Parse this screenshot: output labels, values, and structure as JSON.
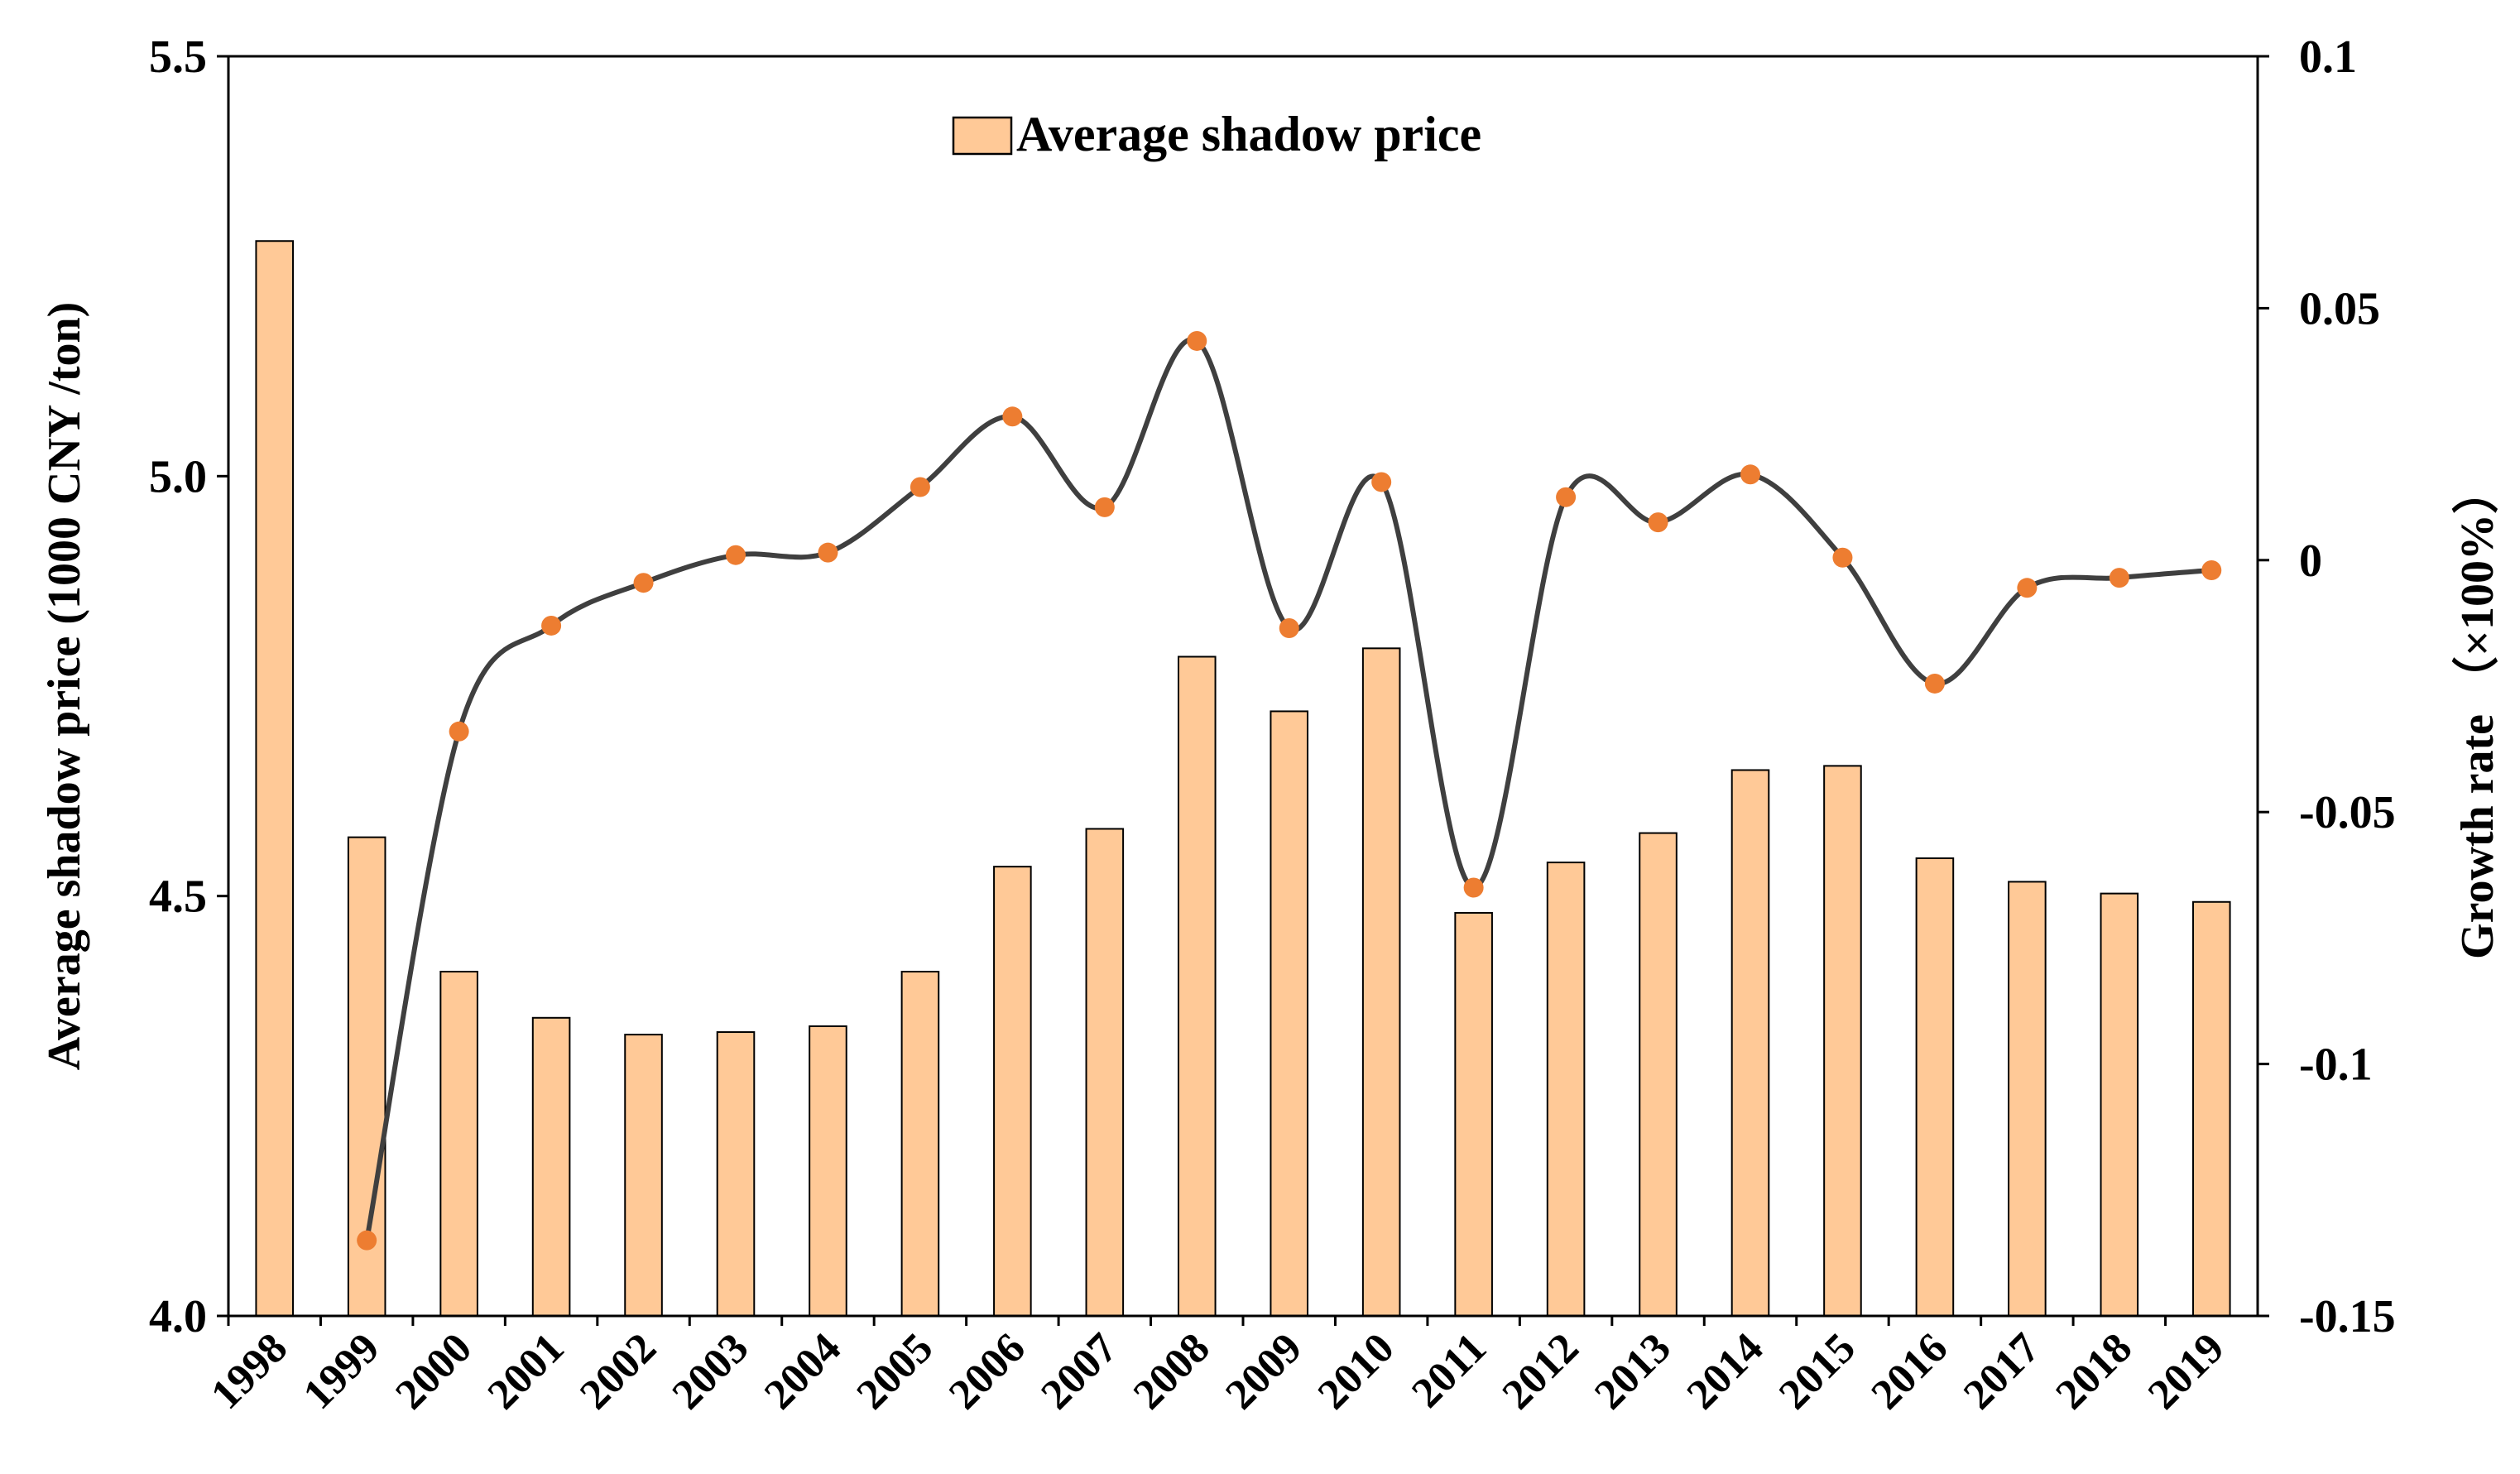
{
  "chart_data": {
    "type": "bar+line",
    "categories": [
      "1998",
      "1999",
      "2000",
      "2001",
      "2002",
      "2003",
      "2004",
      "2005",
      "2006",
      "2007",
      "2008",
      "2009",
      "2010",
      "2011",
      "2012",
      "2013",
      "2014",
      "2015",
      "2016",
      "2017",
      "2018",
      "2019"
    ],
    "series": [
      {
        "name": "Average shadow price",
        "type": "bar",
        "axis": "left",
        "color": "#FFC997",
        "values": [
          5.28,
          4.57,
          4.41,
          4.355,
          4.335,
          4.338,
          4.345,
          4.41,
          4.535,
          4.58,
          4.785,
          4.72,
          4.795,
          4.48,
          4.54,
          4.575,
          4.65,
          4.655,
          4.545,
          4.517,
          4.503,
          4.493
        ]
      },
      {
        "name": "Growth rate",
        "type": "line",
        "axis": "right",
        "line_color": "#3F3F3F",
        "marker_color": "#ED7D31",
        "smooth": true,
        "values": [
          null,
          -0.135,
          -0.034,
          -0.013,
          -0.0045,
          0.001,
          0.0015,
          0.0145,
          0.0285,
          0.0105,
          0.0435,
          -0.0135,
          0.0155,
          -0.065,
          0.0125,
          0.0075,
          0.017,
          0.0005,
          -0.0245,
          -0.0055,
          -0.0035,
          -0.002
        ]
      }
    ],
    "y_left": {
      "label": "Average shadow price (1000 CNY /ton)",
      "range": [
        4.0,
        5.5
      ],
      "ticks": [
        "4.0",
        "4.5",
        "5.0",
        "5.5"
      ]
    },
    "y_right": {
      "label": "Growth rate （×100%）",
      "range": [
        -0.15,
        0.1
      ],
      "ticks": [
        "-0.15",
        "-0.1",
        "-0.05",
        "0",
        "0.05",
        "0.1"
      ]
    },
    "legend": {
      "label": "Average shadow price",
      "position": "top-center"
    },
    "grid": false
  }
}
